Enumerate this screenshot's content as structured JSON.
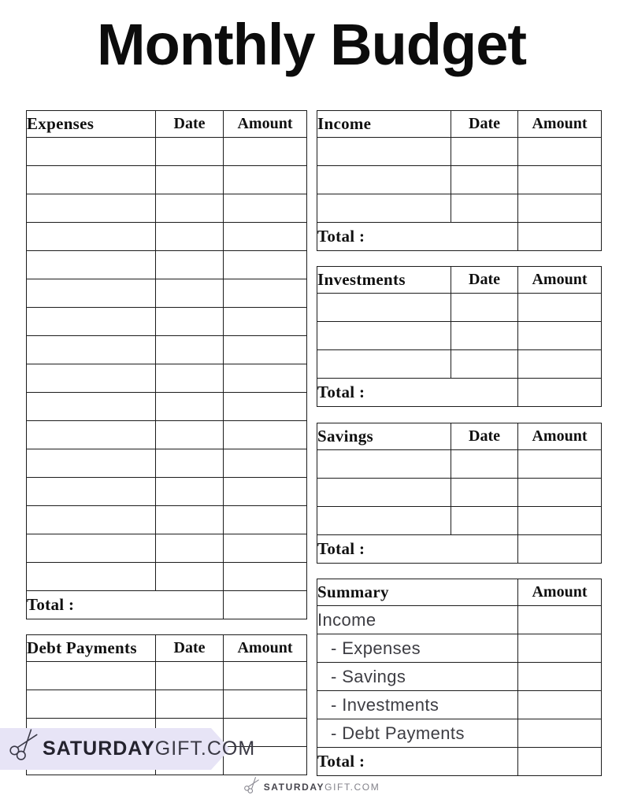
{
  "page": {
    "title": "Monthly Budget"
  },
  "labels": {
    "date": "Date",
    "amount": "Amount",
    "total": "Total :"
  },
  "tables": {
    "expenses": {
      "title": "Expenses",
      "empty_rows": 16
    },
    "debt_payments": {
      "title": "Debt Payments",
      "empty_rows": 4
    },
    "income": {
      "title": "Income",
      "empty_rows": 3
    },
    "investments": {
      "title": "Investments",
      "empty_rows": 3
    },
    "savings": {
      "title": "Savings",
      "empty_rows": 3
    },
    "summary": {
      "title": "Summary",
      "rows": [
        {
          "label": "Income",
          "indent": false
        },
        {
          "label": "- Expenses",
          "indent": true
        },
        {
          "label": "- Savings",
          "indent": true
        },
        {
          "label": "- Investments",
          "indent": true
        },
        {
          "label": "- Debt Payments",
          "indent": true
        }
      ]
    }
  },
  "branding": {
    "brand_bold": "SATURDAY",
    "brand_light": "GIFT.COM",
    "banner_bg_color": "#e7e4f6",
    "scissors_icon": "scissors-bow-icon"
  }
}
